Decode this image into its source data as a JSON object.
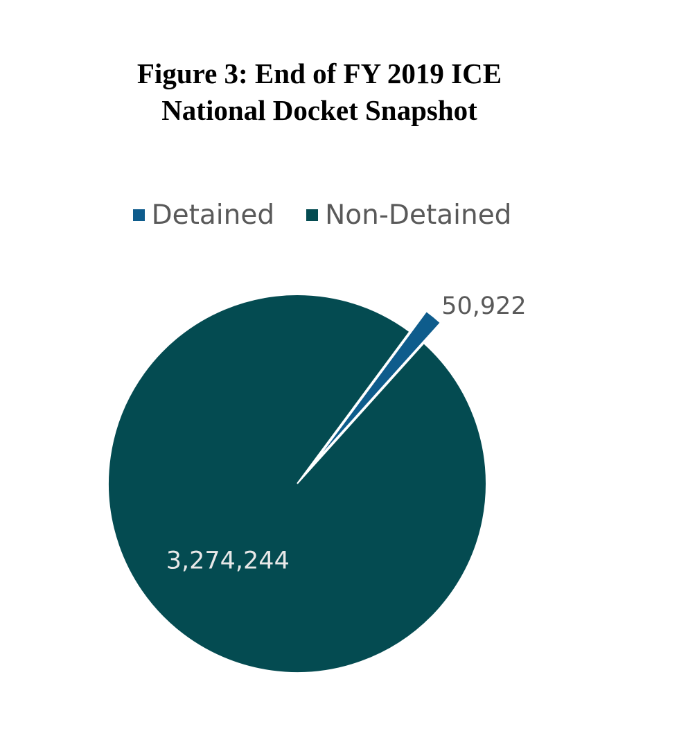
{
  "chart_data": {
    "type": "pie",
    "title_lines": [
      "Figure 3: End of FY 2019 ICE",
      "National Docket Snapshot"
    ],
    "categories": [
      "Detained",
      "Non-Detained"
    ],
    "values": [
      50922,
      3274244
    ],
    "data_labels": [
      "50,922",
      "3,274,244"
    ],
    "colors": [
      "#0E5C8C",
      "#044B51"
    ],
    "legend_position": "top",
    "exploded": [
      "Detained"
    ]
  }
}
